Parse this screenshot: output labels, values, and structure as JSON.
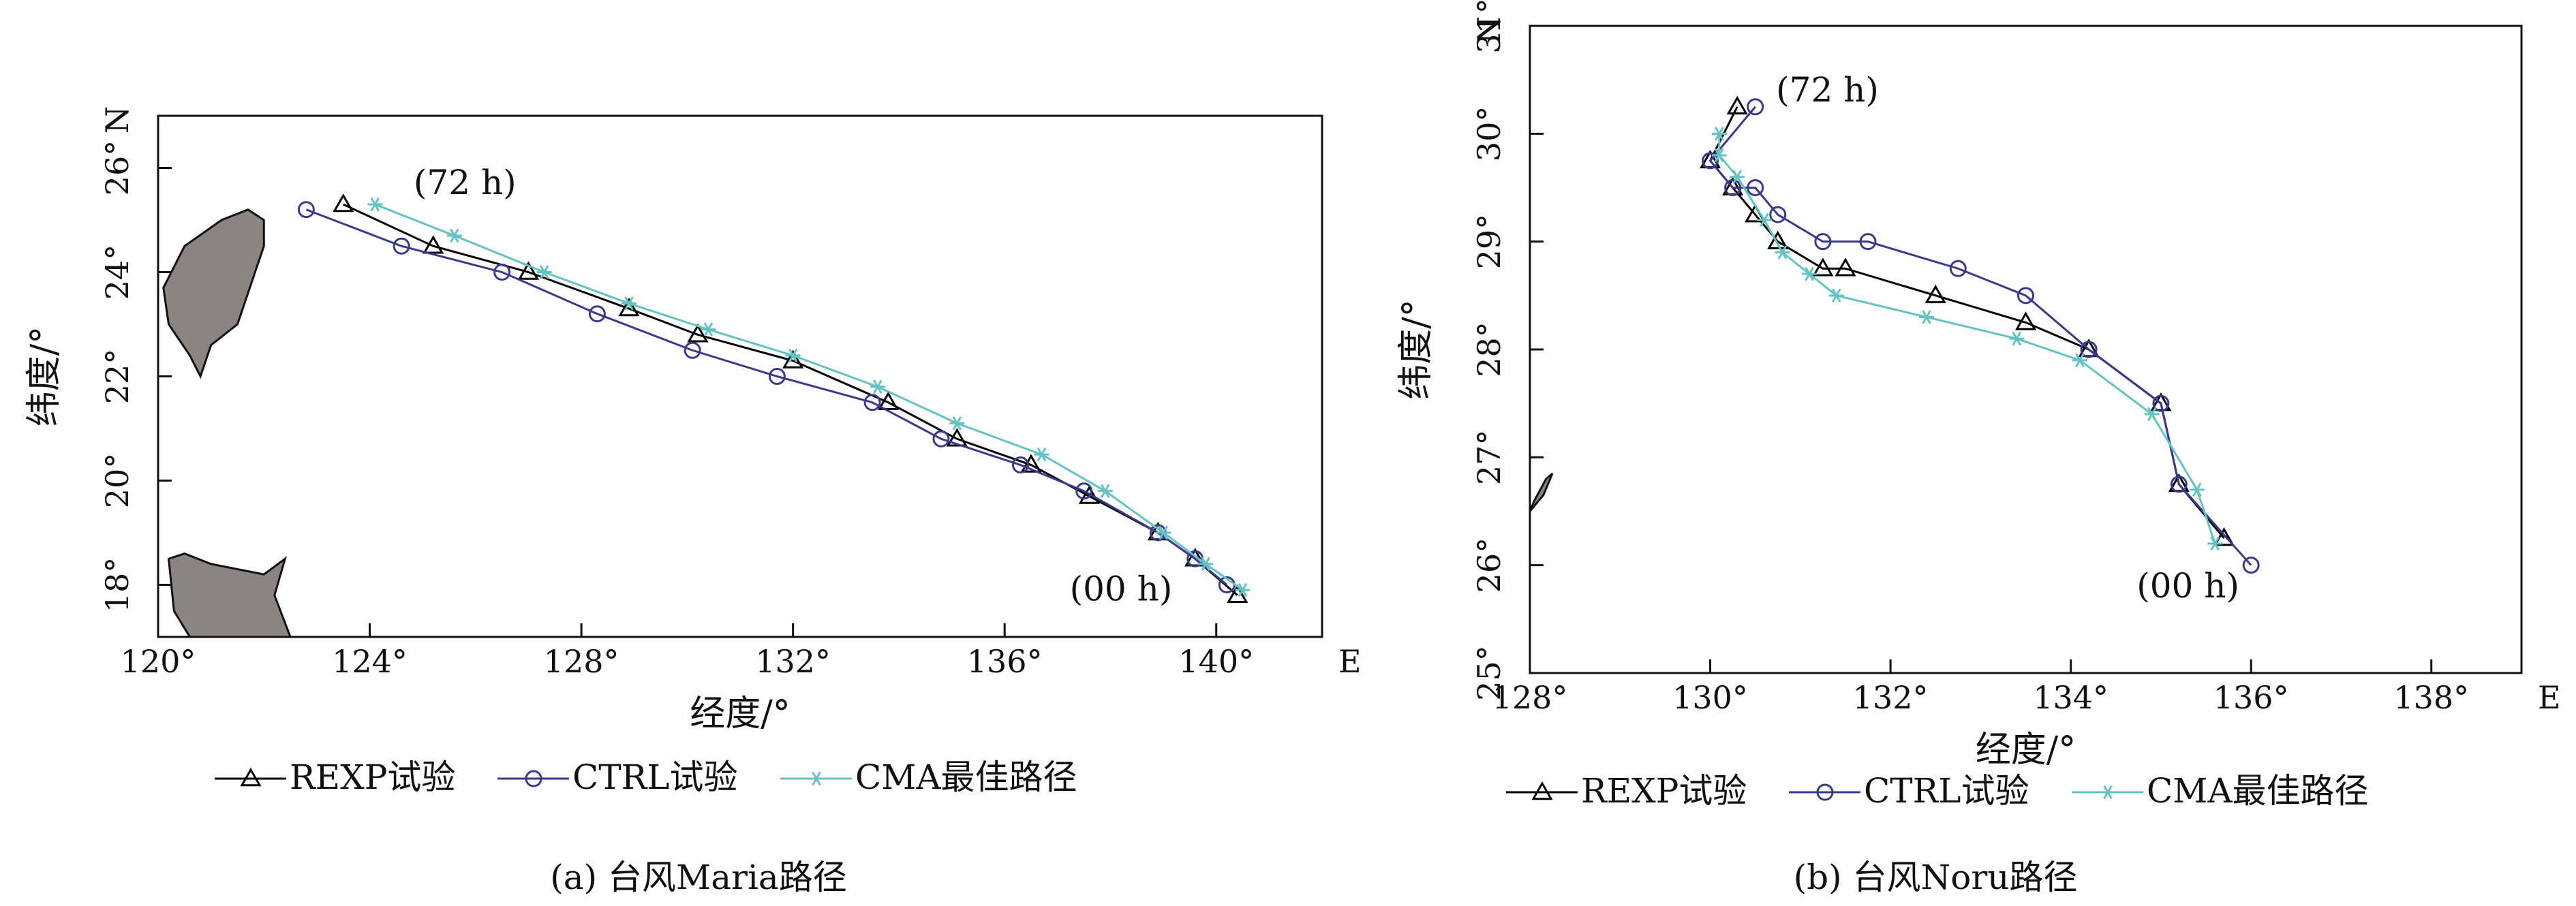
{
  "colors": {
    "rexp": "#000000",
    "ctrl": "#3a3a8c",
    "cma": "#63c3c3",
    "land": "#8c8482"
  },
  "legend": {
    "rexp": "REXP试验",
    "ctrl": "CTRL试验",
    "cma": "CMA最佳路径"
  },
  "chart_data": [
    {
      "type": "line",
      "caption": "(a) 台风Maria路径",
      "xlabel": "经度/°",
      "ylabel": "纬度/°",
      "x_unit_label": "E",
      "y_unit_label": "N",
      "xlim": [
        120,
        142
      ],
      "ylim": [
        17,
        27
      ],
      "xticks": [
        120,
        124,
        128,
        132,
        136,
        140
      ],
      "yticks": [
        18,
        20,
        22,
        24,
        26
      ],
      "xtick_labels": [
        "120°",
        "124°",
        "128°",
        "132°",
        "136°",
        "140°"
      ],
      "ytick_labels": [
        "18°",
        "20°",
        "22°",
        "24°",
        "26°"
      ],
      "grid": false,
      "legend_position": "bottom",
      "annotations": [
        {
          "text": "(72 h)",
          "x": 125.8,
          "y": 25.5
        },
        {
          "text": "(00 h)",
          "x": 138.2,
          "y": 17.7
        }
      ],
      "land": [
        {
          "name": "Taiwan",
          "points": [
            [
              120.1,
              23.7
            ],
            [
              120.5,
              24.5
            ],
            [
              121.2,
              25.0
            ],
            [
              121.7,
              25.2
            ],
            [
              122.0,
              25.0
            ],
            [
              122.0,
              24.5
            ],
            [
              121.5,
              23.0
            ],
            [
              121.0,
              22.6
            ],
            [
              120.8,
              22.0
            ],
            [
              120.6,
              22.4
            ],
            [
              120.2,
              23.0
            ]
          ]
        },
        {
          "name": "Luzon",
          "points": [
            [
              120.2,
              18.5
            ],
            [
              120.5,
              18.6
            ],
            [
              121.0,
              18.4
            ],
            [
              121.5,
              18.3
            ],
            [
              122.0,
              18.2
            ],
            [
              122.4,
              18.5
            ],
            [
              122.2,
              17.8
            ],
            [
              122.5,
              17.0
            ],
            [
              120.6,
              17.0
            ],
            [
              120.3,
              17.5
            ]
          ]
        }
      ],
      "series": [
        {
          "name": "REXP试验",
          "points": [
            [
              140.4,
              17.8
            ],
            [
              139.6,
              18.5
            ],
            [
              138.9,
              19.0
            ],
            [
              137.6,
              19.7
            ],
            [
              136.5,
              20.3
            ],
            [
              135.1,
              20.8
            ],
            [
              133.8,
              21.5
            ],
            [
              132.0,
              22.3
            ],
            [
              130.2,
              22.8
            ],
            [
              128.9,
              23.3
            ],
            [
              127.0,
              24.0
            ],
            [
              125.2,
              24.5
            ],
            [
              123.5,
              25.3
            ]
          ]
        },
        {
          "name": "CTRL试验",
          "points": [
            [
              140.2,
              18.0
            ],
            [
              139.6,
              18.5
            ],
            [
              138.9,
              19.0
            ],
            [
              137.5,
              19.8
            ],
            [
              136.3,
              20.3
            ],
            [
              134.8,
              20.8
            ],
            [
              133.5,
              21.5
            ],
            [
              131.7,
              22.0
            ],
            [
              130.1,
              22.5
            ],
            [
              128.3,
              23.2
            ],
            [
              126.5,
              24.0
            ],
            [
              124.6,
              24.5
            ],
            [
              122.8,
              25.2
            ]
          ]
        },
        {
          "name": "CMA最佳路径",
          "points": [
            [
              140.5,
              17.9
            ],
            [
              139.8,
              18.4
            ],
            [
              139.0,
              19.0
            ],
            [
              137.9,
              19.8
            ],
            [
              136.7,
              20.5
            ],
            [
              135.1,
              21.1
            ],
            [
              133.6,
              21.8
            ],
            [
              132.0,
              22.4
            ],
            [
              130.4,
              22.9
            ],
            [
              128.9,
              23.4
            ],
            [
              127.3,
              24.0
            ],
            [
              125.6,
              24.7
            ],
            [
              124.1,
              25.3
            ]
          ]
        }
      ]
    },
    {
      "type": "line",
      "caption": "(b) 台风Noru路径",
      "xlabel": "经度/°",
      "ylabel": "纬度/°",
      "x_unit_label": "E",
      "y_unit_label": "N",
      "xlim": [
        128,
        139
      ],
      "ylim": [
        25,
        31
      ],
      "xticks": [
        128,
        130,
        132,
        134,
        136,
        138
      ],
      "yticks": [
        25,
        26,
        27,
        28,
        29,
        30,
        31
      ],
      "xtick_labels": [
        "128°",
        "130°",
        "132°",
        "134°",
        "136°",
        "138°"
      ],
      "ytick_labels": [
        "25°",
        "26°",
        "27°",
        "28°",
        "29°",
        "30°",
        "31°"
      ],
      "grid": false,
      "legend_position": "bottom",
      "annotations": [
        {
          "text": "(72 h)",
          "x": 131.3,
          "y": 30.3
        },
        {
          "text": "(00 h)",
          "x": 135.3,
          "y": 25.7
        }
      ],
      "land": [
        {
          "name": "island",
          "points": [
            [
              128.0,
              26.5
            ],
            [
              128.15,
              26.65
            ],
            [
              128.25,
              26.85
            ],
            [
              128.18,
              26.8
            ],
            [
              128.05,
              26.6
            ]
          ]
        }
      ],
      "series": [
        {
          "name": "REXP试验",
          "points": [
            [
              135.7,
              26.25
            ],
            [
              135.2,
              26.75
            ],
            [
              135.0,
              27.5
            ],
            [
              134.2,
              28.0
            ],
            [
              133.5,
              28.25
            ],
            [
              132.5,
              28.5
            ],
            [
              131.5,
              28.75
            ],
            [
              131.25,
              28.75
            ],
            [
              130.75,
              29.0
            ],
            [
              130.5,
              29.25
            ],
            [
              130.25,
              29.5
            ],
            [
              130.0,
              29.75
            ],
            [
              130.3,
              30.25
            ]
          ]
        },
        {
          "name": "CTRL试验",
          "points": [
            [
              136.0,
              26.0
            ],
            [
              135.2,
              26.75
            ],
            [
              135.0,
              27.5
            ],
            [
              134.2,
              28.0
            ],
            [
              133.5,
              28.5
            ],
            [
              132.75,
              28.75
            ],
            [
              131.75,
              29.0
            ],
            [
              131.25,
              29.0
            ],
            [
              130.75,
              29.25
            ],
            [
              130.5,
              29.5
            ],
            [
              130.25,
              29.5
            ],
            [
              130.0,
              29.75
            ],
            [
              130.5,
              30.25
            ]
          ]
        },
        {
          "name": "CMA最佳路径",
          "points": [
            [
              135.6,
              26.2
            ],
            [
              135.4,
              26.7
            ],
            [
              134.9,
              27.4
            ],
            [
              134.1,
              27.9
            ],
            [
              133.4,
              28.1
            ],
            [
              132.4,
              28.3
            ],
            [
              131.4,
              28.5
            ],
            [
              131.1,
              28.7
            ],
            [
              130.8,
              28.9
            ],
            [
              130.6,
              29.2
            ],
            [
              130.3,
              29.6
            ],
            [
              130.1,
              29.8
            ],
            [
              130.1,
              30.0
            ]
          ]
        }
      ]
    }
  ]
}
